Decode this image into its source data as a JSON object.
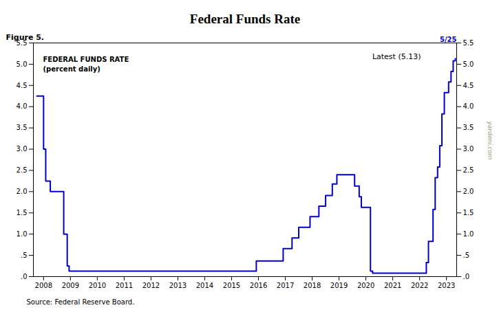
{
  "chart_data": {
    "type": "step",
    "title": "Federal Funds Rate",
    "annotations": [
      "Figure 5.",
      "FEDERAL FUNDS RATE",
      "(percent daily)",
      "Latest (5.13)",
      "5/25",
      "yardeni.com",
      "Source: Federal Reserve Board."
    ],
    "color": "#0000cc",
    "grid": false,
    "x": [
      2007.75,
      2008.0,
      2008.08,
      2008.25,
      2008.42,
      2008.75,
      2008.88,
      2008.95,
      2009.0,
      2015.0,
      2015.92,
      2016.0,
      2016.92,
      2017.0,
      2017.25,
      2017.5,
      2017.92,
      2018.0,
      2018.25,
      2018.5,
      2018.75,
      2018.92,
      2019.0,
      2019.17,
      2019.58,
      2019.75,
      2019.83,
      2020.0,
      2020.17,
      2020.25,
      2020.5,
      2021.0,
      2022.0,
      2022.25,
      2022.33,
      2022.5,
      2022.58,
      2022.67,
      2022.75,
      2022.83,
      2022.92,
      2023.0,
      2023.08,
      2023.17,
      2023.25,
      2023.33
    ],
    "values": [
      4.25,
      3.0,
      2.25,
      2.0,
      2.0,
      1.0,
      0.25,
      0.13,
      0.13,
      0.13,
      0.37,
      0.37,
      0.66,
      0.66,
      0.91,
      1.16,
      1.41,
      1.41,
      1.66,
      1.91,
      2.18,
      2.4,
      2.4,
      2.4,
      2.13,
      1.88,
      1.63,
      1.63,
      0.13,
      0.08,
      0.08,
      0.08,
      0.08,
      0.33,
      0.83,
      1.58,
      2.33,
      2.58,
      3.08,
      3.83,
      4.33,
      4.33,
      4.58,
      4.83,
      5.08,
      5.13
    ],
    "xlim": [
      2007.62,
      2023.38
    ],
    "xticks": [
      2008,
      2009,
      2010,
      2011,
      2012,
      2013,
      2014,
      2015,
      2016,
      2017,
      2018,
      2019,
      2020,
      2021,
      2022,
      2023
    ],
    "ylim": [
      0.0,
      5.5
    ],
    "yticks": [
      {
        "value": 0.0,
        "label": ".0"
      },
      {
        "value": 0.5,
        "label": ".5"
      },
      {
        "value": 1.0,
        "label": "1.0"
      },
      1.5,
      {
        "value": 2.0,
        "label": "2.0"
      },
      2.5,
      {
        "value": 3.0,
        "label": "3.0"
      },
      3.5,
      {
        "value": 4.0,
        "label": "4.0"
      },
      4.5,
      {
        "value": 5.0,
        "label": "5.0"
      },
      5.5
    ]
  }
}
